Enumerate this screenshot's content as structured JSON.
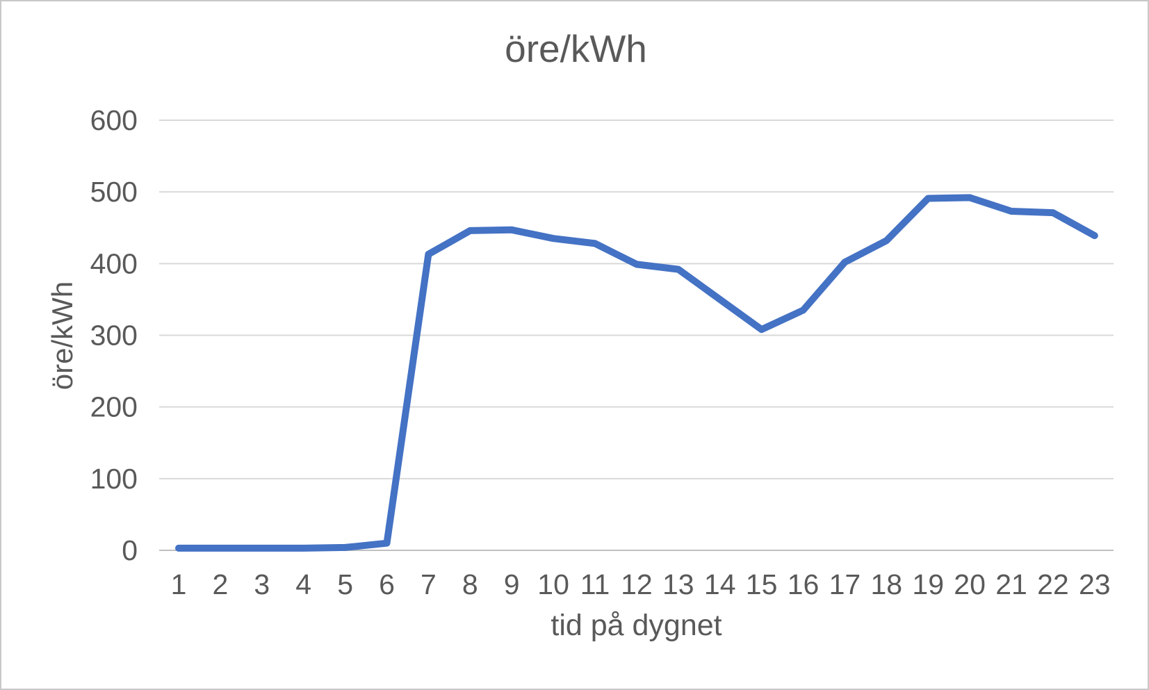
{
  "window": {
    "background_color": "#ffffff",
    "frame_border_color": "#c8c8c8"
  },
  "chart_data": {
    "type": "line",
    "title": "öre/kWh",
    "xlabel": "tid på dygnet",
    "ylabel": "öre/kWh",
    "x": [
      1,
      2,
      3,
      4,
      5,
      6,
      7,
      8,
      9,
      10,
      11,
      12,
      13,
      14,
      15,
      16,
      17,
      18,
      19,
      20,
      21,
      22,
      23
    ],
    "values": [
      3,
      3,
      3,
      3,
      4,
      10,
      413,
      446,
      447,
      435,
      428,
      399,
      392,
      350,
      308,
      335,
      402,
      432,
      491,
      492,
      473,
      471,
      439
    ],
    "series_name": "öre/kWh",
    "ylim": [
      0,
      600
    ],
    "ytick_step": 100,
    "yticks": [
      0,
      100,
      200,
      300,
      400,
      500,
      600
    ],
    "grid": true,
    "legend": false,
    "line_color": "#4472c4",
    "gridline_color": "#d9d9d9",
    "axis_line_color": "#bfbfbf",
    "text_color": "#595959"
  }
}
